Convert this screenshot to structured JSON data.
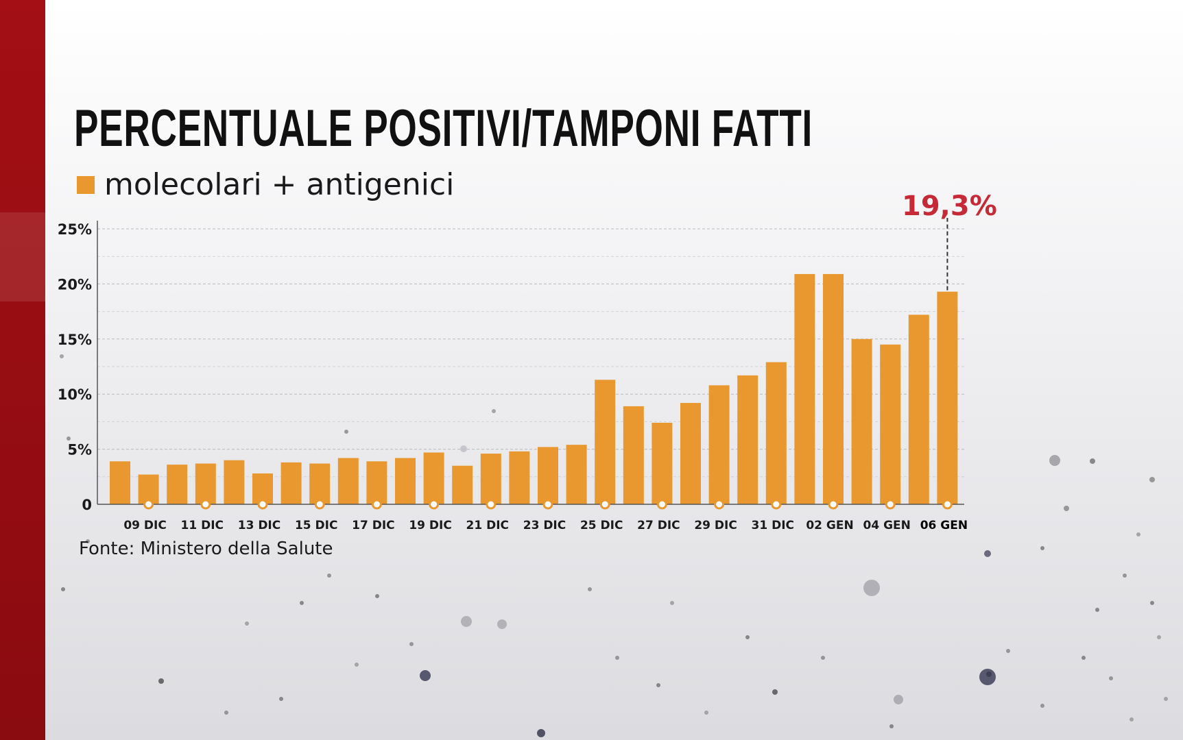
{
  "title": "PERCENTUALE POSITIVI/TAMPONI FATTI",
  "legend": {
    "label": "molecolari + antigenici",
    "color": "#e8982f"
  },
  "source": "Fonte: Ministero della Salute",
  "colors": {
    "bar": "#e8982f",
    "accent": "#c52a36",
    "brand_band": "#9a0d12"
  },
  "chart_data": {
    "type": "bar",
    "title": "PERCENTUALE POSITIVI/TAMPONI FATTI",
    "xlabel": "",
    "ylabel": "",
    "ylim": [
      0,
      25
    ],
    "yticks": [
      0,
      5,
      10,
      15,
      20,
      25
    ],
    "ytick_labels": [
      "0",
      "5%",
      "10%",
      "15%",
      "20%",
      "25%"
    ],
    "grid": true,
    "legend_position": "top-left",
    "series": [
      {
        "name": "molecolari + antigenici",
        "values": [
          3.9,
          2.7,
          3.6,
          3.7,
          4.0,
          2.8,
          3.8,
          3.7,
          4.2,
          3.9,
          4.2,
          4.7,
          3.5,
          4.6,
          4.8,
          5.2,
          5.4,
          11.3,
          8.9,
          7.4,
          9.2,
          10.8,
          11.7,
          12.9,
          20.9,
          20.9,
          15.0,
          14.5,
          17.2,
          19.3
        ]
      }
    ],
    "x_tick_labels": [
      {
        "index": 1,
        "label": "09 DIC"
      },
      {
        "index": 3,
        "label": "11 DIC"
      },
      {
        "index": 5,
        "label": "13 DIC"
      },
      {
        "index": 7,
        "label": "15 DIC"
      },
      {
        "index": 9,
        "label": "17 DIC"
      },
      {
        "index": 11,
        "label": "19 DIC"
      },
      {
        "index": 13,
        "label": "21 DIC"
      },
      {
        "index": 15,
        "label": "23 DIC"
      },
      {
        "index": 17,
        "label": "25 DIC"
      },
      {
        "index": 19,
        "label": "27 DIC"
      },
      {
        "index": 21,
        "label": "29 DIC"
      },
      {
        "index": 23,
        "label": "31 DIC"
      },
      {
        "index": 25,
        "label": "02 GEN"
      },
      {
        "index": 27,
        "label": "04 GEN"
      },
      {
        "index": 29,
        "label": "06 GEN",
        "bold": true
      }
    ],
    "annotation": {
      "index": 29,
      "text": "19,3%"
    }
  }
}
